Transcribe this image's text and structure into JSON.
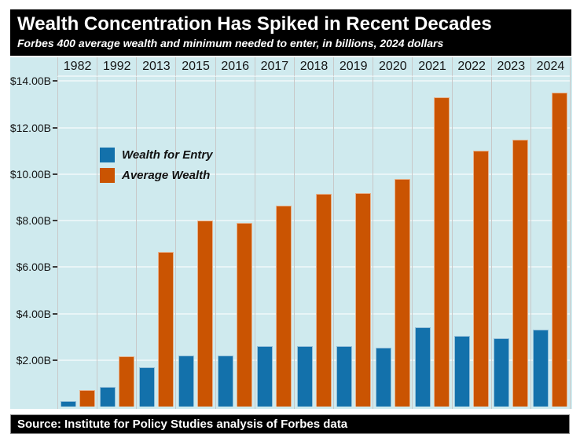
{
  "header": {
    "title": "Wealth Concentration Has Spiked in Recent Decades",
    "subtitle": "Forbes 400 average wealth and minimum needed to enter, in billions, 2024 dollars"
  },
  "footer": {
    "source": "Source: Institute for Policy Studies analysis of Forbes data"
  },
  "legend": {
    "items": [
      {
        "label": "Wealth for Entry",
        "color": "#1371ab"
      },
      {
        "label": "Average Wealth",
        "color": "#ca5402"
      }
    ]
  },
  "colors": {
    "background": "#cfeaee",
    "header_bg": "#000000",
    "header_text": "#ffffff",
    "blue_series": "#1371ab",
    "orange_series": "#ca5402",
    "h_gridline": "#e9f5f7",
    "v_gridline": "#c8c8c8",
    "axis_text": "#151515"
  },
  "chart_data": {
    "type": "bar",
    "title": "Wealth Concentration Has Spiked in Recent Decades",
    "subtitle": "Forbes 400 average wealth and minimum needed to enter, in billions, 2024 dollars",
    "categories": [
      "1982",
      "1992",
      "2013",
      "2015",
      "2016",
      "2017",
      "2018",
      "2019",
      "2020",
      "2021",
      "2022",
      "2023",
      "2024"
    ],
    "series": [
      {
        "name": "Wealth for Entry",
        "color": "#1371ab",
        "values": [
          0.25,
          0.85,
          1.7,
          2.2,
          2.2,
          2.6,
          2.6,
          2.6,
          2.55,
          3.4,
          3.05,
          2.95,
          3.3
        ]
      },
      {
        "name": "Average Wealth",
        "color": "#ca5402",
        "values": [
          0.7,
          2.15,
          6.65,
          8.0,
          7.9,
          8.65,
          9.15,
          9.2,
          9.8,
          13.3,
          11.0,
          11.5,
          13.5
        ]
      }
    ],
    "xlabel": "",
    "ylabel": "",
    "y_tick_values": [
      2,
      4,
      6,
      8,
      10,
      12,
      14
    ],
    "y_tick_labels": [
      "$2.00B",
      "$4.00B",
      "$6.00B",
      "$8.00B",
      "$10.00B",
      "$12.00B",
      "$14.00B"
    ],
    "ylim": [
      0,
      14.2
    ],
    "grid": true,
    "x_axis_position": "top",
    "legend_position": "upper-left-inside"
  }
}
